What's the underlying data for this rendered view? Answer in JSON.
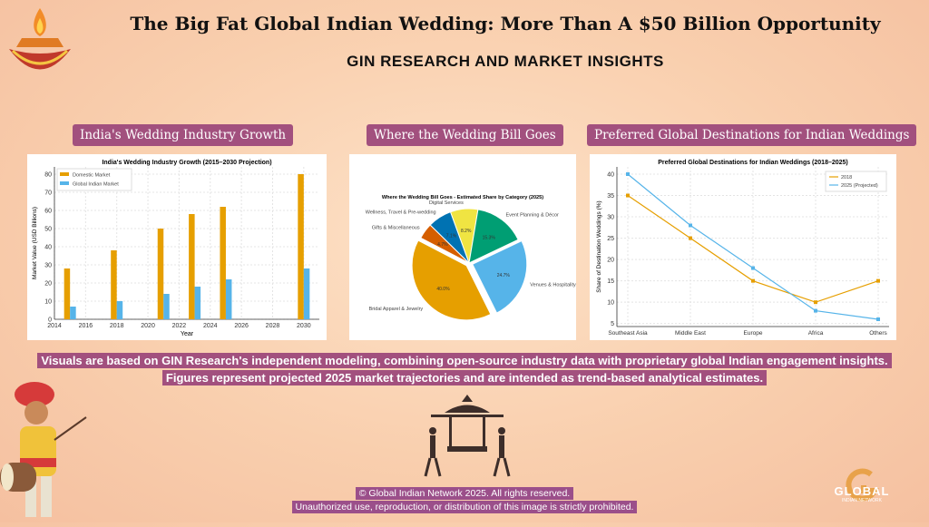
{
  "header": {
    "title": "The Big Fat Global Indian Wedding: More Than A $50 Billion Opportunity",
    "subtitle": "GIN RESEARCH AND MARKET INSIGHTS"
  },
  "sections": [
    "India's Wedding Industry Growth",
    "Where the Wedding Bill Goes",
    "Preferred Global Destinations for Indian Weddings"
  ],
  "caption": [
    "Visuals are based on GIN Research's independent modeling, combining open-source industry data with proprietary global Indian engagement insights.",
    "Figures represent projected 2025 market trajectories and are intended as trend-based analytical estimates."
  ],
  "footer": [
    "© Global Indian Network 2025. All rights reserved.",
    "Unauthorized use, reproduction, or distribution of this image is strictly prohibited."
  ],
  "logo": {
    "text": "GLOBAL",
    "sub": "INDIAN NETWORK"
  },
  "chart_data": [
    {
      "type": "bar",
      "title": "India's Wedding Industry Growth (2015–2030 Projection)",
      "xlabel": "Year",
      "ylabel": "Market Value (USD Billions)",
      "x": [
        2015,
        2018,
        2021,
        2023,
        2025,
        2030
      ],
      "series": [
        {
          "name": "Domestic Market",
          "values": [
            28,
            38,
            50,
            58,
            62,
            80
          ],
          "color": "#e69f00"
        },
        {
          "name": "Global Indian Market",
          "values": [
            7,
            10,
            14,
            18,
            22,
            28
          ],
          "color": "#56b4e9"
        }
      ],
      "xticks": [
        2014,
        2016,
        2018,
        2020,
        2022,
        2024,
        2026,
        2028,
        2030
      ],
      "yticks": [
        0,
        10,
        20,
        30,
        40,
        50,
        60,
        70,
        80
      ],
      "xlim": [
        2014,
        2031
      ],
      "ylim": [
        0,
        84
      ],
      "grid": true,
      "legend": "top-left"
    },
    {
      "type": "pie",
      "title": "Where the Wedding Bill Goes - Estimated Share by Category (2025)",
      "slices": [
        {
          "label": "Digital Services",
          "value": 8.2,
          "text": "8.2%",
          "color": "#f0e442"
        },
        {
          "label": "Event Planning & Décor",
          "value": 15.3,
          "text": "15.3%",
          "color": "#009e73"
        },
        {
          "label": "Venues & Hospitality",
          "value": 24.7,
          "text": "24.7%",
          "color": "#56b4e9",
          "explode": true
        },
        {
          "label": "Bridal Apparel & Jewelry",
          "value": 40.0,
          "text": "40.0%",
          "color": "#e69f00",
          "explode": true
        },
        {
          "label": "Gifts & Miscellaneous",
          "value": 4.7,
          "text": "4.7%",
          "color": "#d55e00"
        },
        {
          "label": "Wellness, Travel & Pre-wedding",
          "value": 7.1,
          "text": "7.1%",
          "color": "#0072b2"
        }
      ]
    },
    {
      "type": "line",
      "title": "Preferred Global Destinations for Indian Weddings (2018–2025)",
      "ylabel": "Share of Destination Weddings (%)",
      "categories": [
        "Southeast Asia",
        "Middle East",
        "Europe",
        "Africa",
        "Others"
      ],
      "series": [
        {
          "name": "2018",
          "values": [
            35,
            25,
            15,
            10,
            15
          ],
          "color": "#e69f00"
        },
        {
          "name": "2025 (Projected)",
          "values": [
            40,
            28,
            18,
            8,
            6
          ],
          "color": "#56b4e9"
        }
      ],
      "yticks": [
        5,
        10,
        15,
        20,
        25,
        30,
        35,
        40
      ],
      "ylim": [
        4.3,
        41.7
      ],
      "grid": true,
      "legend": "top-right"
    }
  ]
}
